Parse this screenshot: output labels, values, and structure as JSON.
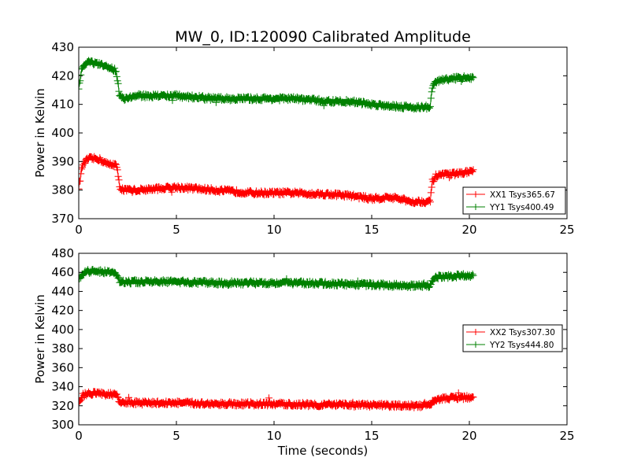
{
  "figure": {
    "title": "MW_0, ID:120090 Calibrated Amplitude",
    "xlabel": "Time (seconds)"
  },
  "chart_data": [
    {
      "type": "line",
      "title": "MW_0, ID:120090 Calibrated Amplitude",
      "xlabel": "",
      "ylabel": "Power in Kelvin",
      "xlim": [
        0,
        25
      ],
      "ylim": [
        370,
        430
      ],
      "xticks": [
        "0",
        "5",
        "10",
        "15",
        "20",
        "25"
      ],
      "yticks": [
        "370",
        "380",
        "390",
        "400",
        "410",
        "420",
        "430"
      ],
      "grid": false,
      "legend_position": "lower-right",
      "marker": "plus",
      "series": [
        {
          "name": "XX1 Tsys365.67",
          "color": "#ff0000",
          "x": [
            0,
            0.2,
            0.5,
            1.0,
            1.5,
            1.9,
            2.0,
            2.1,
            2.3,
            3,
            5,
            7,
            9,
            11,
            13,
            14,
            15,
            16,
            17,
            18.0,
            18.1,
            18.3,
            19,
            20.2
          ],
          "y": [
            381,
            389,
            391,
            391,
            389,
            389,
            386,
            381,
            380,
            380,
            381,
            380,
            379,
            379,
            378.5,
            378,
            377,
            377.5,
            376,
            376,
            383,
            385,
            385.5,
            386.5
          ]
        },
        {
          "name": "YY1 Tsys400.49",
          "color": "#008000",
          "x": [
            0,
            0.2,
            0.5,
            1.0,
            1.5,
            1.9,
            2.0,
            2.1,
            2.3,
            3,
            5,
            7,
            9,
            11,
            13,
            14,
            15,
            16,
            17,
            18.0,
            18.1,
            18.3,
            19,
            20.2
          ],
          "y": [
            416,
            423,
            425,
            424,
            423,
            422,
            418,
            413,
            412,
            413,
            413,
            412,
            412,
            412,
            411,
            411,
            410,
            409.5,
            409,
            409,
            416,
            418,
            419,
            419.5
          ]
        }
      ]
    },
    {
      "type": "line",
      "title": "",
      "xlabel": "Time (seconds)",
      "ylabel": "Power in Kelvin",
      "xlim": [
        0,
        25
      ],
      "ylim": [
        300,
        480
      ],
      "xticks": [
        "0",
        "5",
        "10",
        "15",
        "20",
        "25"
      ],
      "yticks": [
        "300",
        "320",
        "340",
        "360",
        "380",
        "400",
        "420",
        "440",
        "460",
        "480"
      ],
      "grid": false,
      "legend_position": "center-right",
      "marker": "plus",
      "series": [
        {
          "name": "XX2 Tsys307.30",
          "color": "#ff0000",
          "x": [
            0,
            0.2,
            0.5,
            1.0,
            1.5,
            1.9,
            2.0,
            2.1,
            2.3,
            3,
            5,
            7,
            9,
            11,
            13,
            15,
            17,
            18.0,
            18.1,
            18.3,
            19,
            20.2
          ],
          "y": [
            322,
            331,
            333,
            333,
            332,
            332,
            328,
            324,
            323,
            323,
            323,
            322,
            322,
            321.5,
            321,
            320.5,
            320,
            320,
            325,
            327,
            328,
            329
          ]
        },
        {
          "name": "YY2 Tsys444.80",
          "color": "#008000",
          "x": [
            0,
            0.2,
            0.5,
            1.0,
            1.5,
            1.9,
            2.0,
            2.1,
            2.3,
            3,
            5,
            7,
            9,
            11,
            13,
            15,
            17,
            18.0,
            18.1,
            18.3,
            19,
            20.2
          ],
          "y": [
            452,
            460,
            461,
            461,
            460,
            459,
            455,
            451,
            450,
            450,
            450,
            449,
            449,
            449,
            448,
            447,
            446,
            446,
            452,
            455,
            456,
            457
          ]
        }
      ]
    }
  ]
}
